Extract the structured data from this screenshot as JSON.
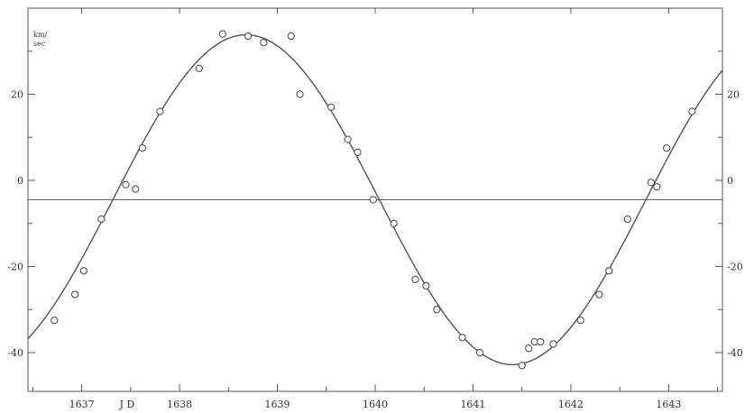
{
  "chart_data": {
    "type": "scatter",
    "xlim": [
      1636.45,
      1643.55
    ],
    "ylim": [
      -49,
      40
    ],
    "x_ticks": [
      {
        "value": 1637,
        "label": "1637"
      },
      {
        "value": 1638,
        "label": "1638"
      },
      {
        "value": 1639,
        "label": "1639"
      },
      {
        "value": 1640,
        "label": "1640"
      },
      {
        "value": 1641,
        "label": "1641"
      },
      {
        "value": 1642,
        "label": "1642"
      },
      {
        "value": 1643,
        "label": "1643"
      }
    ],
    "x_axis_unit": "J D",
    "y_left_ticks": [
      {
        "value": 20,
        "label": "20"
      },
      {
        "value": 0,
        "label": "0"
      },
      {
        "value": -20,
        "label": "-20"
      },
      {
        "value": -40,
        "label": "-40"
      }
    ],
    "y_right_ticks": [
      {
        "value": 20,
        "label": "20"
      },
      {
        "value": 0,
        "label": "0"
      },
      {
        "value": -20,
        "label": "-20"
      },
      {
        "value": -40,
        "label": "-40"
      }
    ],
    "y_axis_unit": [
      "km/",
      "sec"
    ],
    "reference_line_y": -4.5,
    "series": [
      {
        "points": [
          [
            1636.72,
            -32.5
          ],
          [
            1636.93,
            -26.5
          ],
          [
            1637.02,
            -21
          ],
          [
            1637.2,
            -9
          ],
          [
            1637.45,
            -1
          ],
          [
            1637.55,
            -2
          ],
          [
            1637.62,
            7.5
          ],
          [
            1637.8,
            16
          ],
          [
            1638.2,
            26
          ],
          [
            1638.44,
            34
          ],
          [
            1638.7,
            33.5
          ],
          [
            1638.86,
            32
          ],
          [
            1639.14,
            33.5
          ],
          [
            1639.23,
            20
          ],
          [
            1639.55,
            17
          ],
          [
            1639.72,
            9.5
          ],
          [
            1639.82,
            6.5
          ],
          [
            1639.98,
            -4.5
          ],
          [
            1640.19,
            -10
          ],
          [
            1640.41,
            -23
          ],
          [
            1640.52,
            -24.5
          ],
          [
            1640.63,
            -30
          ],
          [
            1640.89,
            -36.5
          ],
          [
            1641.07,
            -40
          ],
          [
            1641.5,
            -43
          ],
          [
            1641.57,
            -39
          ],
          [
            1641.63,
            -37.5
          ],
          [
            1641.69,
            -37.5
          ],
          [
            1641.82,
            -38
          ],
          [
            1642.1,
            -32.5
          ],
          [
            1642.29,
            -26.5
          ],
          [
            1642.39,
            -21
          ],
          [
            1642.58,
            -9
          ],
          [
            1642.82,
            -0.5
          ],
          [
            1642.88,
            -1.5
          ],
          [
            1642.98,
            7.5
          ],
          [
            1643.24,
            16
          ]
        ],
        "fit_curve": {
          "kind": "sinusoid",
          "mean": -4.5,
          "amplitude": 38.3,
          "period_days": 5.45,
          "peak_jd": 1638.68
        }
      }
    ]
  }
}
